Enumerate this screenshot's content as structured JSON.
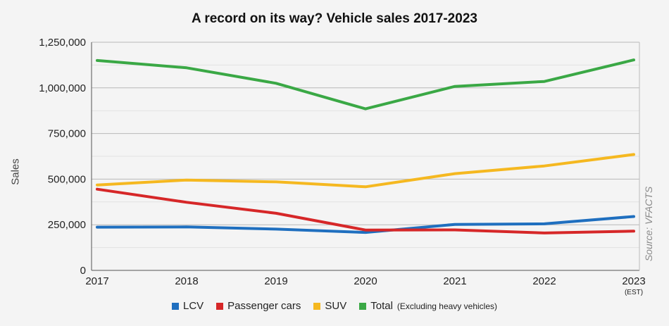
{
  "chart_data": {
    "type": "line",
    "title": "A record on its way? Vehicle sales 2017-2023",
    "ylabel": "Sales",
    "xlabel": "",
    "source": "Source: VFACTS",
    "x": [
      "2017",
      "2018",
      "2019",
      "2020",
      "2021",
      "2022",
      "2023"
    ],
    "x_notes": [
      "",
      "",
      "",
      "",
      "",
      "",
      "(EST)"
    ],
    "ylim": [
      0,
      1250000
    ],
    "yticks": [
      0,
      250000,
      500000,
      750000,
      1000000,
      1250000
    ],
    "ytick_labels": [
      "0",
      "250,000",
      "500,000",
      "750,000",
      "1,000,000",
      "1,250,000"
    ],
    "grid": true,
    "legend_position": "bottom",
    "series": [
      {
        "name": "LCV",
        "note": "",
        "color": "#1f6fbf",
        "values": [
          237000,
          238000,
          226000,
          208000,
          252000,
          255000,
          295000
        ]
      },
      {
        "name": "Passenger cars",
        "note": "",
        "color": "#d62728",
        "values": [
          445000,
          373000,
          313000,
          221000,
          222000,
          205000,
          215000
        ]
      },
      {
        "name": "SUV",
        "note": "",
        "color": "#f5b820",
        "values": [
          468000,
          495000,
          485000,
          458000,
          530000,
          572000,
          635000
        ]
      },
      {
        "name": "Total",
        "note": "(Excluding heavy vehicles)",
        "color": "#3aa845",
        "values": [
          1150000,
          1110000,
          1025000,
          885000,
          1008000,
          1035000,
          1153000
        ]
      }
    ]
  }
}
